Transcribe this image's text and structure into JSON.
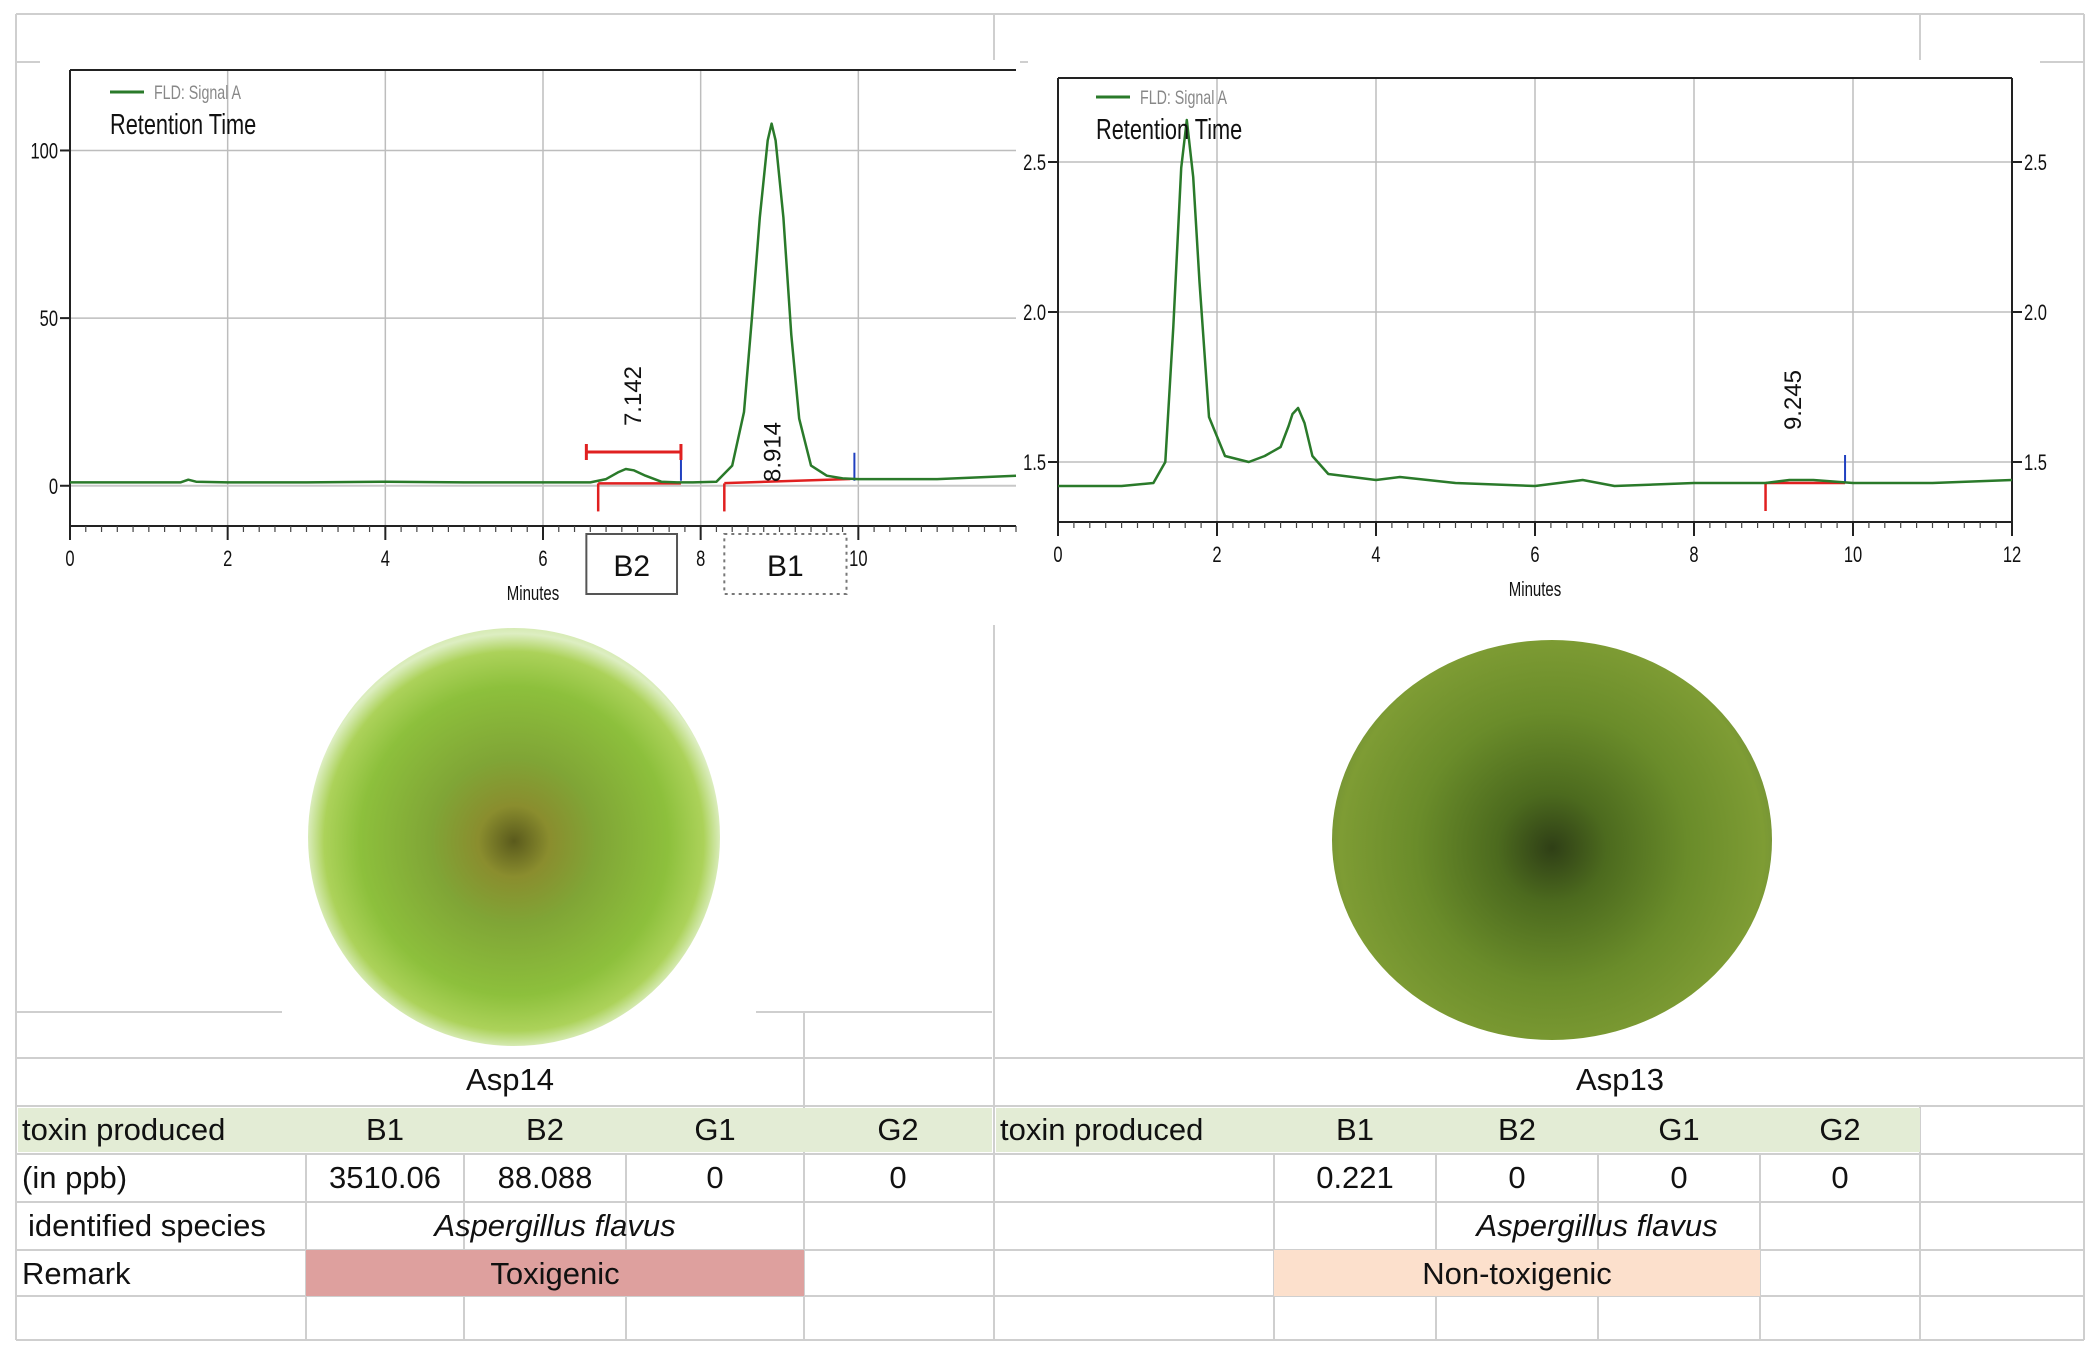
{
  "chart_data": [
    {
      "type": "line",
      "legend": "FLD: Signal A",
      "title": "Retention Time",
      "xlabel": "Minutes",
      "ylabel": "",
      "xlim": [
        0,
        12
      ],
      "ylim": [
        -12,
        124
      ],
      "xticks": [
        0,
        2,
        4,
        6,
        8,
        10
      ],
      "yticks": [
        0,
        50,
        100
      ],
      "ytick_labels": [
        "0",
        "50",
        "100"
      ],
      "grid": true,
      "color": "#2a7a2a",
      "series": [
        {
          "x": [
            0,
            1.4,
            1.5,
            1.6,
            2,
            3,
            4,
            5,
            6,
            6.6,
            6.8,
            6.95,
            7.05,
            7.15,
            7.3,
            7.5,
            7.7,
            7.9,
            8.2,
            8.4,
            8.55,
            8.65,
            8.75,
            8.85,
            8.9,
            8.95,
            9.05,
            9.15,
            9.25,
            9.4,
            9.6,
            9.8,
            10,
            11,
            12
          ],
          "y": [
            1,
            1,
            1.8,
            1.2,
            1,
            1,
            1.2,
            1,
            1,
            1,
            2,
            4,
            5,
            4.6,
            3,
            1.2,
            1,
            1,
            1.2,
            6,
            22,
            50,
            80,
            103,
            108,
            103,
            80,
            45,
            20,
            6,
            3,
            2.2,
            2,
            2,
            3
          ]
        }
      ],
      "peak_labels": [
        {
          "x": 7.142,
          "label": "7.142"
        },
        {
          "x": 8.914,
          "label": "8.914"
        }
      ],
      "box_labels": [
        "B2",
        "B1"
      ]
    },
    {
      "type": "line",
      "legend": "FLD: Signal A",
      "title": "Retention Time",
      "xlabel": "Minutes",
      "ylabel": "",
      "xlim": [
        0,
        12
      ],
      "ylim": [
        1.3,
        2.78
      ],
      "xticks": [
        0,
        2,
        4,
        6,
        8,
        10,
        12
      ],
      "yticks": [
        1.5,
        2.0,
        2.5
      ],
      "ytick_labels": [
        "1.5",
        "2.0",
        "2.5"
      ],
      "grid": true,
      "color": "#2a7a2a",
      "series": [
        {
          "x": [
            0,
            0.8,
            1.2,
            1.35,
            1.45,
            1.55,
            1.62,
            1.7,
            1.78,
            1.9,
            2.1,
            2.4,
            2.6,
            2.8,
            2.9,
            2.95,
            3.02,
            3.1,
            3.2,
            3.4,
            3.7,
            4,
            4.3,
            5,
            6,
            6.6,
            7,
            8,
            8.9,
            9.2,
            9.5,
            10,
            11,
            12
          ],
          "y": [
            1.42,
            1.42,
            1.43,
            1.5,
            1.95,
            2.48,
            2.64,
            2.45,
            2.1,
            1.65,
            1.52,
            1.5,
            1.52,
            1.55,
            1.62,
            1.66,
            1.68,
            1.63,
            1.52,
            1.46,
            1.45,
            1.44,
            1.45,
            1.43,
            1.42,
            1.44,
            1.42,
            1.43,
            1.43,
            1.44,
            1.44,
            1.43,
            1.43,
            1.44
          ]
        }
      ],
      "peak_labels": [
        {
          "x": 9.245,
          "label": "9.245"
        }
      ]
    }
  ],
  "samples": {
    "left": {
      "name": "Asp14"
    },
    "right": {
      "name": "Asp13"
    }
  },
  "table": {
    "row_header_label": "toxin produced",
    "row_unit_label": "(in ppb)",
    "species_label": "identified species",
    "remark_label": "Remark",
    "toxins": [
      "B1",
      "B2",
      "G1",
      "G2"
    ],
    "left": {
      "values": [
        "3510.06",
        "88.088",
        "0",
        "0"
      ],
      "species": "Aspergillus flavus",
      "remark": "Toxigenic"
    },
    "right": {
      "values": [
        "0.221",
        "0",
        "0",
        "0"
      ],
      "species": "Aspergillus flavus",
      "remark": "Non-toxigenic"
    }
  },
  "colors": {
    "line": "#2a7a2a",
    "baseline_marker": "#e02020",
    "end_marker": "#2040c0",
    "header_bg": "#e3ecd5",
    "toxigenic_bg": "#dea09e",
    "non_toxigenic_bg": "#fce0cc"
  }
}
